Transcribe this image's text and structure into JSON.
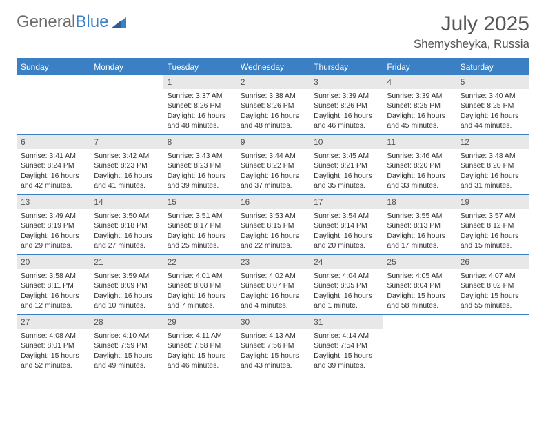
{
  "logo": {
    "text1": "General",
    "text2": "Blue"
  },
  "title": "July 2025",
  "location": "Shemysheyka, Russia",
  "colors": {
    "header_bg": "#3b7fc4",
    "header_text": "#ffffff",
    "daynum_bg": "#e8e8e8",
    "body_text": "#333333",
    "title_text": "#555555",
    "rule": "#3b7fc4"
  },
  "dow": [
    "Sunday",
    "Monday",
    "Tuesday",
    "Wednesday",
    "Thursday",
    "Friday",
    "Saturday"
  ],
  "weeks": [
    [
      {
        "n": "",
        "sr": "",
        "ss": "",
        "dl": ""
      },
      {
        "n": "",
        "sr": "",
        "ss": "",
        "dl": ""
      },
      {
        "n": "1",
        "sr": "Sunrise: 3:37 AM",
        "ss": "Sunset: 8:26 PM",
        "dl": "Daylight: 16 hours and 48 minutes."
      },
      {
        "n": "2",
        "sr": "Sunrise: 3:38 AM",
        "ss": "Sunset: 8:26 PM",
        "dl": "Daylight: 16 hours and 48 minutes."
      },
      {
        "n": "3",
        "sr": "Sunrise: 3:39 AM",
        "ss": "Sunset: 8:26 PM",
        "dl": "Daylight: 16 hours and 46 minutes."
      },
      {
        "n": "4",
        "sr": "Sunrise: 3:39 AM",
        "ss": "Sunset: 8:25 PM",
        "dl": "Daylight: 16 hours and 45 minutes."
      },
      {
        "n": "5",
        "sr": "Sunrise: 3:40 AM",
        "ss": "Sunset: 8:25 PM",
        "dl": "Daylight: 16 hours and 44 minutes."
      }
    ],
    [
      {
        "n": "6",
        "sr": "Sunrise: 3:41 AM",
        "ss": "Sunset: 8:24 PM",
        "dl": "Daylight: 16 hours and 42 minutes."
      },
      {
        "n": "7",
        "sr": "Sunrise: 3:42 AM",
        "ss": "Sunset: 8:23 PM",
        "dl": "Daylight: 16 hours and 41 minutes."
      },
      {
        "n": "8",
        "sr": "Sunrise: 3:43 AM",
        "ss": "Sunset: 8:23 PM",
        "dl": "Daylight: 16 hours and 39 minutes."
      },
      {
        "n": "9",
        "sr": "Sunrise: 3:44 AM",
        "ss": "Sunset: 8:22 PM",
        "dl": "Daylight: 16 hours and 37 minutes."
      },
      {
        "n": "10",
        "sr": "Sunrise: 3:45 AM",
        "ss": "Sunset: 8:21 PM",
        "dl": "Daylight: 16 hours and 35 minutes."
      },
      {
        "n": "11",
        "sr": "Sunrise: 3:46 AM",
        "ss": "Sunset: 8:20 PM",
        "dl": "Daylight: 16 hours and 33 minutes."
      },
      {
        "n": "12",
        "sr": "Sunrise: 3:48 AM",
        "ss": "Sunset: 8:20 PM",
        "dl": "Daylight: 16 hours and 31 minutes."
      }
    ],
    [
      {
        "n": "13",
        "sr": "Sunrise: 3:49 AM",
        "ss": "Sunset: 8:19 PM",
        "dl": "Daylight: 16 hours and 29 minutes."
      },
      {
        "n": "14",
        "sr": "Sunrise: 3:50 AM",
        "ss": "Sunset: 8:18 PM",
        "dl": "Daylight: 16 hours and 27 minutes."
      },
      {
        "n": "15",
        "sr": "Sunrise: 3:51 AM",
        "ss": "Sunset: 8:17 PM",
        "dl": "Daylight: 16 hours and 25 minutes."
      },
      {
        "n": "16",
        "sr": "Sunrise: 3:53 AM",
        "ss": "Sunset: 8:15 PM",
        "dl": "Daylight: 16 hours and 22 minutes."
      },
      {
        "n": "17",
        "sr": "Sunrise: 3:54 AM",
        "ss": "Sunset: 8:14 PM",
        "dl": "Daylight: 16 hours and 20 minutes."
      },
      {
        "n": "18",
        "sr": "Sunrise: 3:55 AM",
        "ss": "Sunset: 8:13 PM",
        "dl": "Daylight: 16 hours and 17 minutes."
      },
      {
        "n": "19",
        "sr": "Sunrise: 3:57 AM",
        "ss": "Sunset: 8:12 PM",
        "dl": "Daylight: 16 hours and 15 minutes."
      }
    ],
    [
      {
        "n": "20",
        "sr": "Sunrise: 3:58 AM",
        "ss": "Sunset: 8:11 PM",
        "dl": "Daylight: 16 hours and 12 minutes."
      },
      {
        "n": "21",
        "sr": "Sunrise: 3:59 AM",
        "ss": "Sunset: 8:09 PM",
        "dl": "Daylight: 16 hours and 10 minutes."
      },
      {
        "n": "22",
        "sr": "Sunrise: 4:01 AM",
        "ss": "Sunset: 8:08 PM",
        "dl": "Daylight: 16 hours and 7 minutes."
      },
      {
        "n": "23",
        "sr": "Sunrise: 4:02 AM",
        "ss": "Sunset: 8:07 PM",
        "dl": "Daylight: 16 hours and 4 minutes."
      },
      {
        "n": "24",
        "sr": "Sunrise: 4:04 AM",
        "ss": "Sunset: 8:05 PM",
        "dl": "Daylight: 16 hours and 1 minute."
      },
      {
        "n": "25",
        "sr": "Sunrise: 4:05 AM",
        "ss": "Sunset: 8:04 PM",
        "dl": "Daylight: 15 hours and 58 minutes."
      },
      {
        "n": "26",
        "sr": "Sunrise: 4:07 AM",
        "ss": "Sunset: 8:02 PM",
        "dl": "Daylight: 15 hours and 55 minutes."
      }
    ],
    [
      {
        "n": "27",
        "sr": "Sunrise: 4:08 AM",
        "ss": "Sunset: 8:01 PM",
        "dl": "Daylight: 15 hours and 52 minutes."
      },
      {
        "n": "28",
        "sr": "Sunrise: 4:10 AM",
        "ss": "Sunset: 7:59 PM",
        "dl": "Daylight: 15 hours and 49 minutes."
      },
      {
        "n": "29",
        "sr": "Sunrise: 4:11 AM",
        "ss": "Sunset: 7:58 PM",
        "dl": "Daylight: 15 hours and 46 minutes."
      },
      {
        "n": "30",
        "sr": "Sunrise: 4:13 AM",
        "ss": "Sunset: 7:56 PM",
        "dl": "Daylight: 15 hours and 43 minutes."
      },
      {
        "n": "31",
        "sr": "Sunrise: 4:14 AM",
        "ss": "Sunset: 7:54 PM",
        "dl": "Daylight: 15 hours and 39 minutes."
      },
      {
        "n": "",
        "sr": "",
        "ss": "",
        "dl": ""
      },
      {
        "n": "",
        "sr": "",
        "ss": "",
        "dl": ""
      }
    ]
  ]
}
